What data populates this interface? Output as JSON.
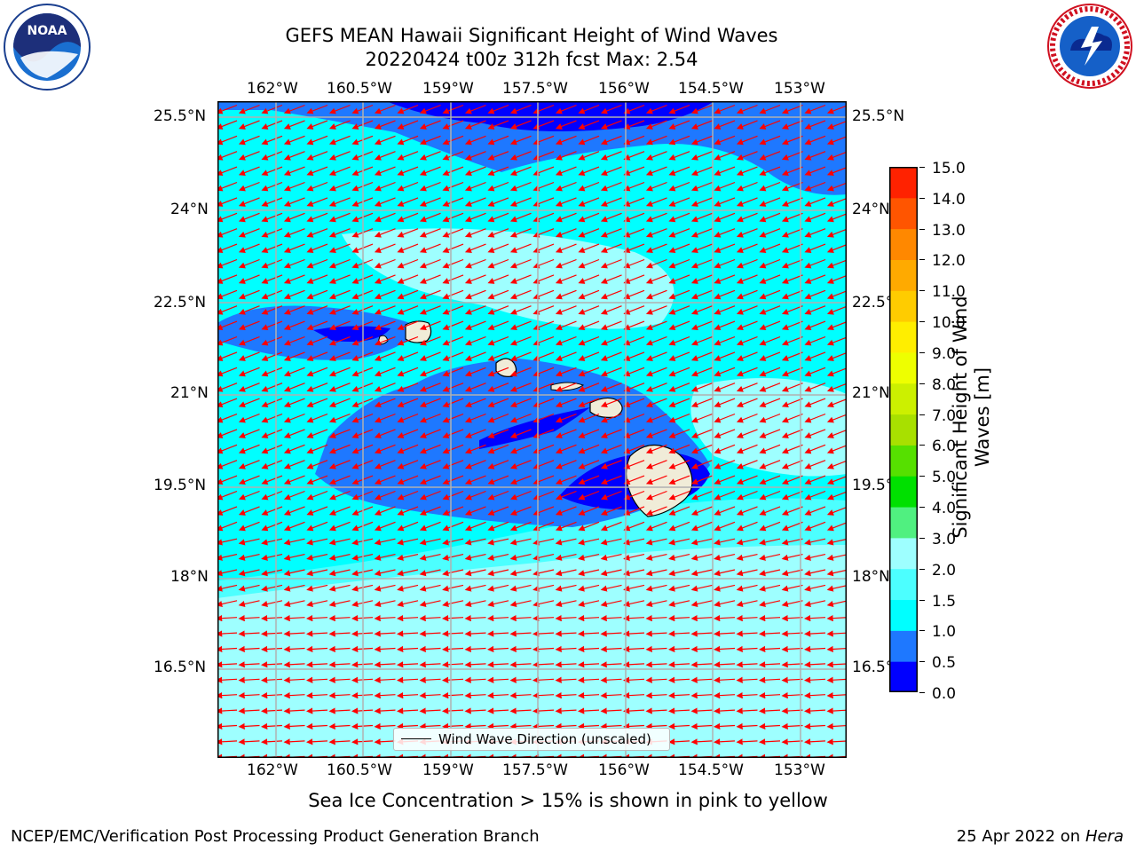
{
  "header": {
    "title_line1": "GEFS MEAN Hawaii Significant Height of Wind Waves",
    "title_line2": "20220424 t00z 312h fcst   Max: 2.54"
  },
  "logos": {
    "left": "NOAA",
    "right": "NATIONAL WEATHER SERVICE"
  },
  "map": {
    "lon_labels": [
      "162°W",
      "160.5°W",
      "159°W",
      "157.5°W",
      "156°W",
      "154.5°W",
      "153°W"
    ],
    "lat_labels": [
      "25.5°N",
      "24°N",
      "22.5°N",
      "21°N",
      "19.5°N",
      "18°N",
      "16.5°N"
    ],
    "legend_label": "Wind Wave Direction (unscaled)",
    "arrow_color": "#ff0000",
    "land_color": "#f0ecd8"
  },
  "colorbar": {
    "label": "Significant Height of Wind Waves [m]",
    "ticks": [
      "0.0",
      "0.5",
      "1.0",
      "1.5",
      "2.0",
      "3.0",
      "4.0",
      "5.0",
      "6.0",
      "7.0",
      "8.0",
      "9.0",
      "10.0",
      "11.0",
      "12.0",
      "13.0",
      "14.0",
      "15.0"
    ],
    "colors": [
      "#0000ff",
      "#1e78ff",
      "#00ffff",
      "#4cffff",
      "#9effff",
      "#50f080",
      "#00e000",
      "#56e000",
      "#a8e000",
      "#ccf000",
      "#eeff00",
      "#ffee00",
      "#ffcc00",
      "#ffaa00",
      "#ff8800",
      "#ff5500",
      "#ff2200"
    ]
  },
  "footer": {
    "note": "Sea Ice Concentration > 15% is shown in pink to yellow",
    "left": "NCEP/EMC/Verification Post Processing Product Generation Branch",
    "right_prefix": "25 Apr 2022 on ",
    "right_machine": "Hera"
  }
}
